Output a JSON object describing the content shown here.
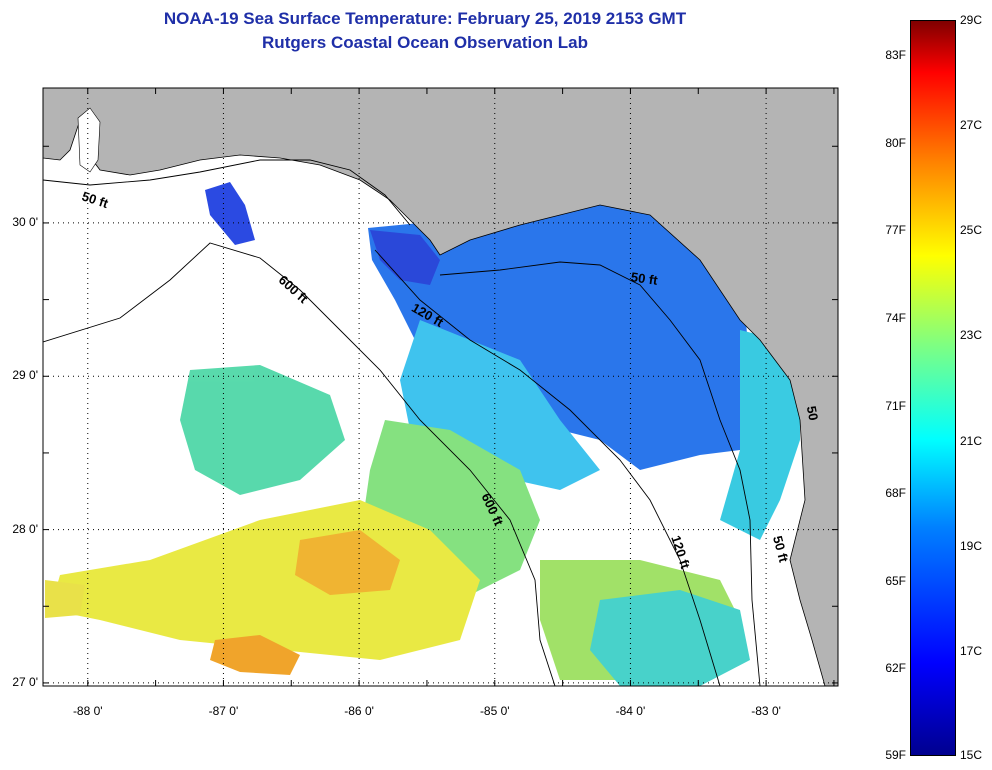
{
  "header": {
    "title": "NOAA-19 Sea Surface Temperature:  February 25, 2019 2153 GMT",
    "subtitle": "Rutgers Coastal Ocean Observation Lab"
  },
  "map": {
    "lon_range": [
      -88.33,
      -82.47
    ],
    "lat_range": [
      26.98,
      30.88
    ],
    "land_color": "#b4b4b4",
    "cloud_color": "#ffffff",
    "grid": "dotted",
    "lat_ticks": [
      {
        "value": 30,
        "label": "30 0'"
      },
      {
        "value": 29,
        "label": "29 0'"
      },
      {
        "value": 28,
        "label": "28 0'"
      },
      {
        "value": 27,
        "label": "27 0'"
      }
    ],
    "lon_ticks": [
      {
        "value": -88,
        "label": "-88 0'"
      },
      {
        "value": -87,
        "label": "-87 0'"
      },
      {
        "value": -86,
        "label": "-86 0'"
      },
      {
        "value": -85,
        "label": "-85 0'"
      },
      {
        "value": -84,
        "label": "-84 0'"
      },
      {
        "value": -83,
        "label": "-83 0'"
      }
    ],
    "contour_labels": [
      {
        "text": "50 ft",
        "lon": -88.05,
        "lat": 30.15,
        "rotate": 18
      },
      {
        "text": "600 ft",
        "lon": -86.6,
        "lat": 29.62,
        "rotate": 42
      },
      {
        "text": "120 ft",
        "lon": -85.62,
        "lat": 29.43,
        "rotate": 30
      },
      {
        "text": "50 ft",
        "lon": -84.0,
        "lat": 29.62,
        "rotate": 8
      },
      {
        "text": "600 ft",
        "lon": -85.1,
        "lat": 28.22,
        "rotate": 65
      },
      {
        "text": "120 ft",
        "lon": -83.7,
        "lat": 27.95,
        "rotate": 72
      },
      {
        "text": "50 ft",
        "lon": -82.95,
        "lat": 27.95,
        "rotate": 75
      },
      {
        "text": "50",
        "lon": -82.7,
        "lat": 28.8,
        "rotate": 80
      }
    ]
  },
  "colorbar": {
    "min_c": 15,
    "max_c": 29,
    "celsius_labels": [
      "29C",
      "27C",
      "25C",
      "23C",
      "21C",
      "19C",
      "17C",
      "15C"
    ],
    "fahrenheit_labels": [
      "83F",
      "80F",
      "77F",
      "74F",
      "71F",
      "68F",
      "65F",
      "62F",
      "59F"
    ]
  }
}
